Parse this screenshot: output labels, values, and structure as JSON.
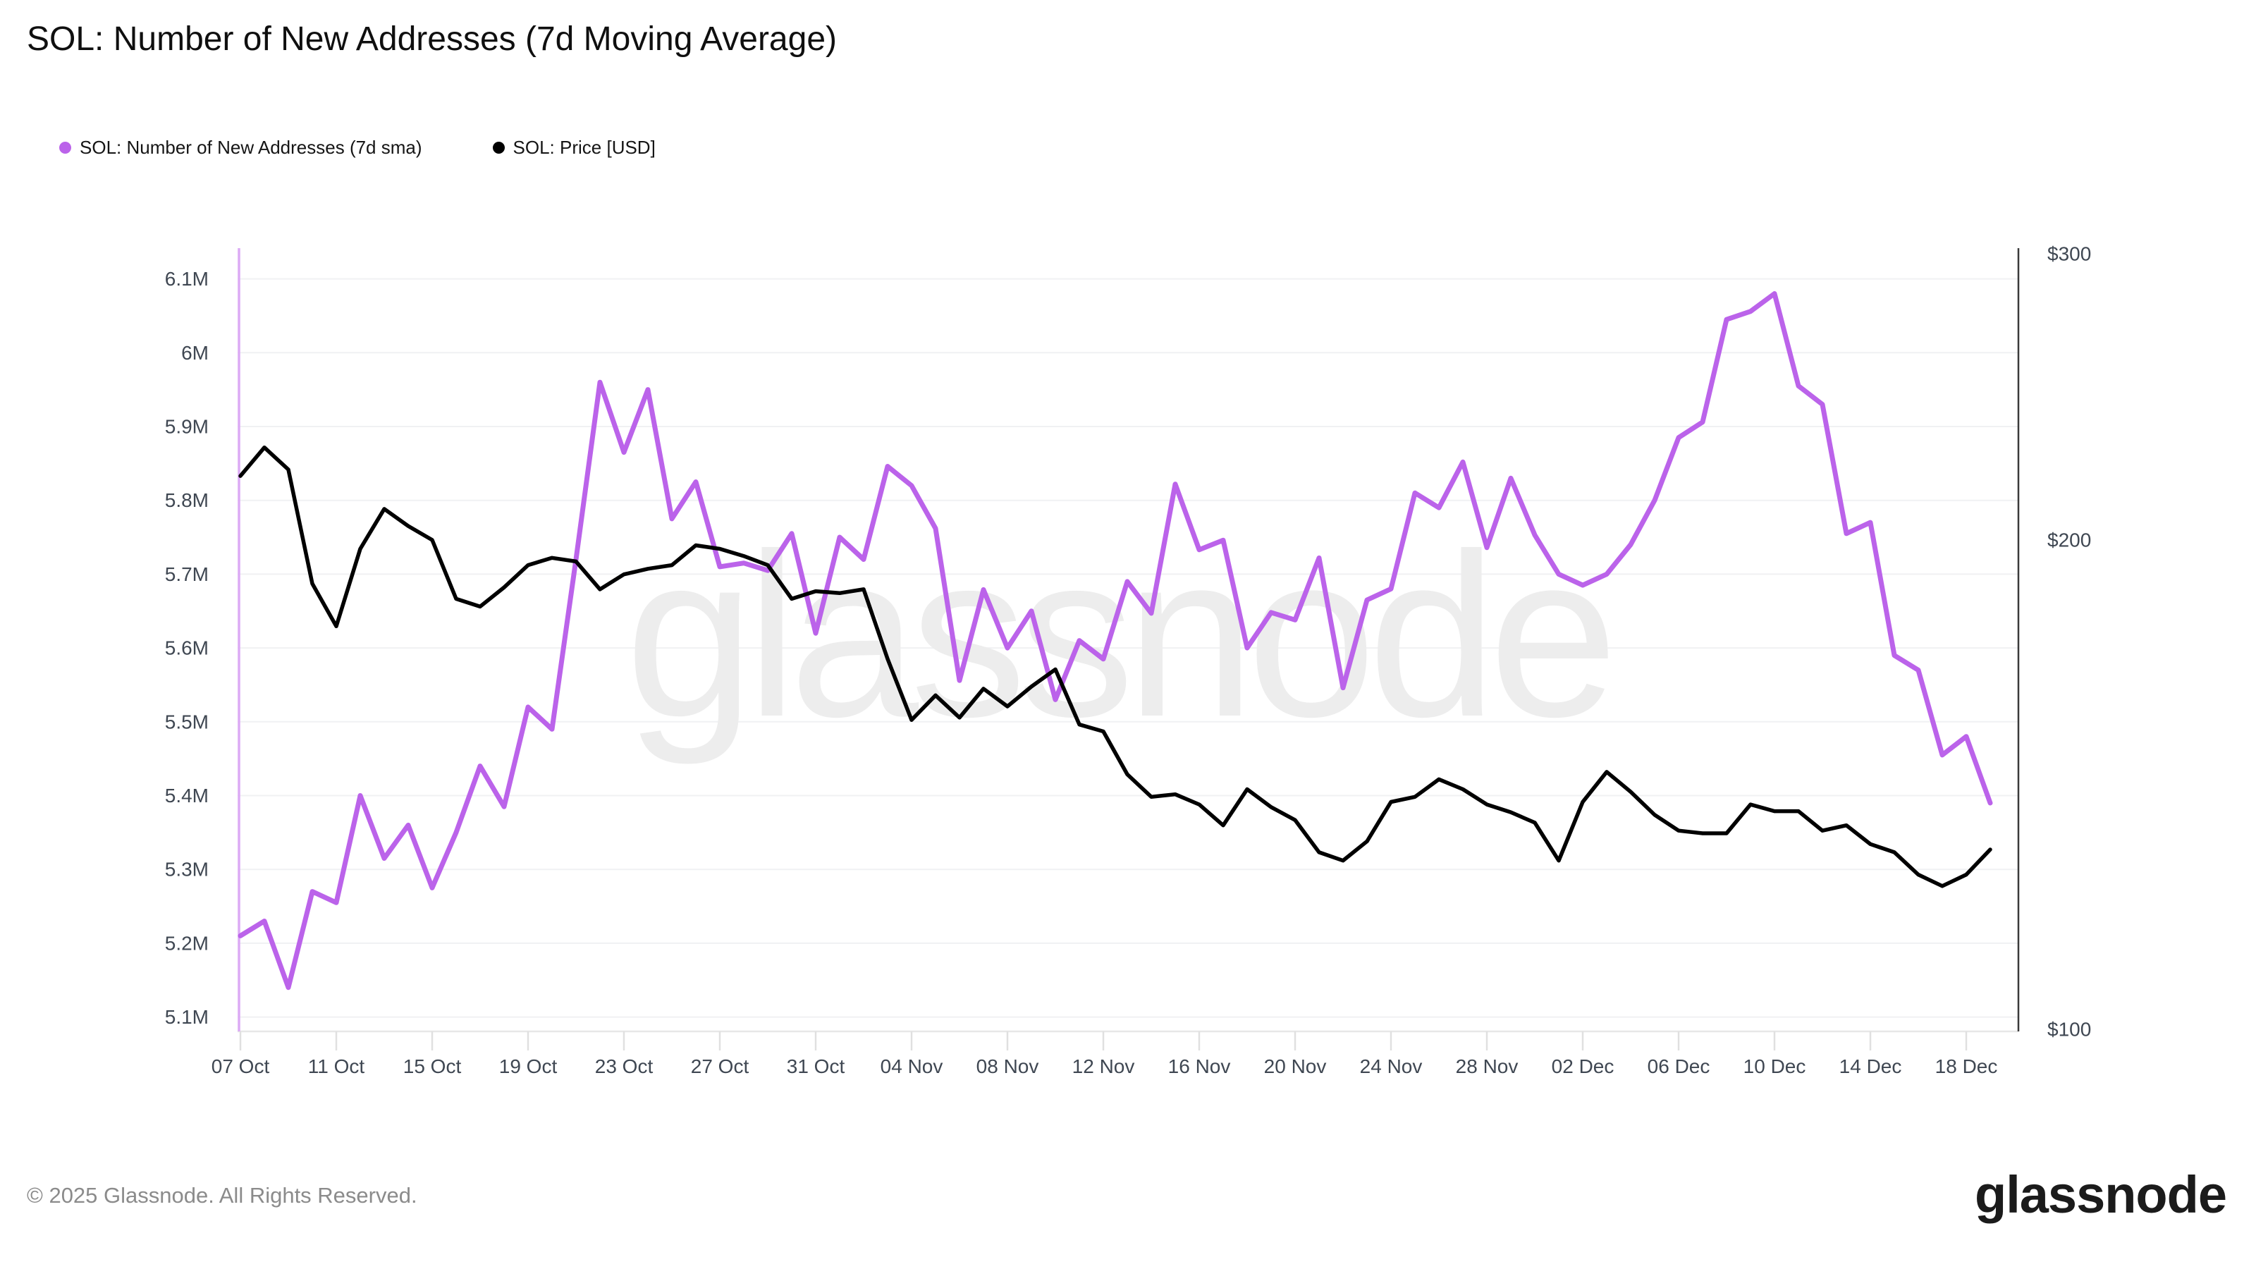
{
  "page": {
    "title": "SOL: Number of New Addresses (7d Moving Average)",
    "footer": "© 2025 Glassnode. All Rights Reserved.",
    "brand_logo": "glassnode"
  },
  "legend": [
    {
      "label": "SOL: Number of New Addresses (7d sma)",
      "color": "#bb63ea"
    },
    {
      "label": "SOL: Price [USD]",
      "color": "#000000"
    }
  ],
  "colors": {
    "addresses_line": "#bb63ea",
    "price_line": "#000000",
    "grid_line": "#f0f1f3",
    "axis_text": "#3f4752",
    "axis_line": "#e7e7e7",
    "tick_mark": "#e0e0e0",
    "right_spine": "#3a3a3a",
    "start_marker": "#dcaaf5",
    "watermark": "#ededed",
    "background": "#ffffff"
  },
  "chart_data": {
    "type": "line",
    "title": "SOL: Number of New Addresses (7d Moving Average)",
    "watermark": "glassnode",
    "grid": "horizontal",
    "legend_position": "top-left",
    "x": [
      "07 Oct",
      "08 Oct",
      "09 Oct",
      "10 Oct",
      "11 Oct",
      "12 Oct",
      "13 Oct",
      "14 Oct",
      "15 Oct",
      "16 Oct",
      "17 Oct",
      "18 Oct",
      "19 Oct",
      "20 Oct",
      "21 Oct",
      "22 Oct",
      "23 Oct",
      "24 Oct",
      "25 Oct",
      "26 Oct",
      "27 Oct",
      "28 Oct",
      "29 Oct",
      "30 Oct",
      "31 Oct",
      "01 Nov",
      "02 Nov",
      "03 Nov",
      "04 Nov",
      "05 Nov",
      "06 Nov",
      "07 Nov",
      "08 Nov",
      "09 Nov",
      "10 Nov",
      "11 Nov",
      "12 Nov",
      "13 Nov",
      "14 Nov",
      "15 Nov",
      "16 Nov",
      "17 Nov",
      "18 Nov",
      "19 Nov",
      "20 Nov",
      "21 Nov",
      "22 Nov",
      "23 Nov",
      "24 Nov",
      "25 Nov",
      "26 Nov",
      "27 Nov",
      "28 Nov",
      "29 Nov",
      "30 Nov",
      "01 Dec",
      "02 Dec",
      "03 Dec",
      "04 Dec",
      "05 Dec",
      "06 Dec",
      "07 Dec",
      "08 Dec",
      "09 Dec",
      "10 Dec",
      "11 Dec",
      "12 Dec",
      "13 Dec",
      "14 Dec",
      "15 Dec",
      "16 Dec",
      "17 Dec",
      "18 Dec",
      "19 Dec"
    ],
    "x_tick_labels": [
      "07 Oct",
      "11 Oct",
      "15 Oct",
      "19 Oct",
      "23 Oct",
      "27 Oct",
      "31 Oct",
      "04 Nov",
      "08 Nov",
      "12 Nov",
      "16 Nov",
      "20 Nov",
      "24 Nov",
      "28 Nov",
      "02 Dec",
      "06 Dec",
      "10 Dec",
      "14 Dec",
      "18 Dec"
    ],
    "series": [
      {
        "name": "SOL: Number of New Addresses (7d sma)",
        "axis": "left",
        "unit": "M addresses",
        "color": "#bb63ea",
        "values": [
          5.21,
          5.23,
          5.14,
          5.27,
          5.255,
          5.4,
          5.315,
          5.36,
          5.275,
          5.35,
          5.44,
          5.385,
          5.52,
          5.49,
          5.72,
          5.96,
          5.865,
          5.95,
          5.775,
          5.825,
          5.71,
          5.715,
          5.705,
          5.755,
          5.62,
          5.75,
          5.72,
          5.846,
          5.82,
          5.762,
          5.556,
          5.679,
          5.6,
          5.65,
          5.53,
          5.61,
          5.585,
          5.69,
          5.647,
          5.822,
          5.733,
          5.746,
          5.6,
          5.648,
          5.638,
          5.722,
          5.546,
          5.665,
          5.68,
          5.81,
          5.79,
          5.852,
          5.736,
          5.83,
          5.753,
          5.7,
          5.685,
          5.7,
          5.74,
          5.8,
          5.885,
          5.906,
          6.045,
          6.056,
          6.08,
          5.955,
          5.93,
          5.755,
          5.77,
          5.59,
          5.57,
          5.455,
          5.48,
          5.39
        ]
      },
      {
        "name": "SOL: Price [USD]",
        "axis": "right",
        "unit": "USD",
        "color": "#000000",
        "values": [
          219,
          228,
          221,
          188,
          177,
          197.5,
          209,
          204,
          200,
          184,
          182,
          187,
          193,
          195,
          194,
          186.5,
          190.5,
          192,
          193,
          198.5,
          197.5,
          195.5,
          193,
          184,
          186,
          185.5,
          186.5,
          169,
          155,
          160.5,
          155.5,
          162,
          158,
          162.5,
          166.5,
          154,
          152.5,
          143.5,
          139,
          139.5,
          137.5,
          133.5,
          140.5,
          137,
          134.5,
          128.5,
          127,
          130.5,
          138,
          139,
          142.5,
          140.5,
          137.5,
          136,
          134,
          127,
          138,
          144,
          140,
          135.5,
          132.5,
          132,
          132,
          137.5,
          136.2,
          136.2,
          132.5,
          133.5,
          130,
          128.5,
          124.5,
          122.5,
          124.5,
          129
        ]
      }
    ],
    "y_axis_left": {
      "scale": "linear",
      "range_min": 5.1,
      "range_max": 6.1,
      "values": [
        6.1,
        6.0,
        5.9,
        5.8,
        5.7,
        5.6,
        5.5,
        5.4,
        5.3,
        5.2,
        5.1
      ],
      "labels": [
        "6.1M",
        "6M",
        "5.9M",
        "5.8M",
        "5.7M",
        "5.6M",
        "5.5M",
        "5.4M",
        "5.3M",
        "5.2M",
        "5.1M"
      ]
    },
    "y_axis_right": {
      "scale": "log",
      "range_min": 100,
      "range_max": 300,
      "values": [
        300,
        200,
        100
      ],
      "labels": [
        "$300",
        "$200",
        "$100"
      ]
    }
  }
}
